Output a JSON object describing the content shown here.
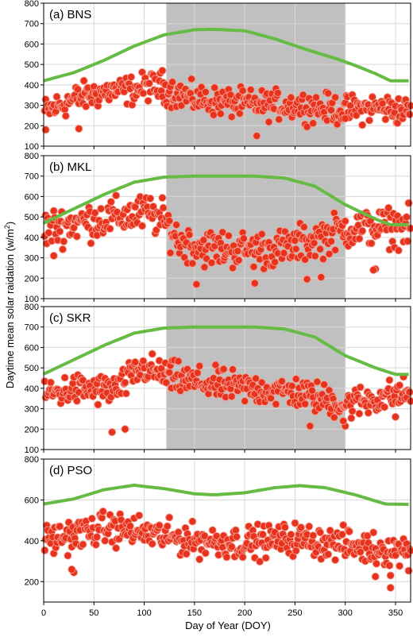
{
  "chart_data": {
    "type": "scatter",
    "xlabel": "Day of Year (DOY)",
    "ylabel": "Daytime mean solar raidation (w/m²)",
    "ylabel_main": "Daytime mean solar raidation (w/m",
    "ylabel_sup": "2",
    "ylabel_close": ")",
    "xlim": [
      0,
      365
    ],
    "xticks": [
      "0",
      "50",
      "100",
      "150",
      "200",
      "250",
      "300",
      "350"
    ],
    "x_tick_values": [
      0,
      50,
      100,
      150,
      200,
      250,
      300,
      350
    ],
    "grid": true,
    "colors": {
      "points_fill": "#e8321e",
      "points_stroke": "#f4a090",
      "curve": "#66bb44",
      "shade": "#c0c0c0",
      "grid": "#d8d8d8"
    },
    "panels": [
      {
        "title": "(a) BNS",
        "ylim": [
          100,
          800
        ],
        "yticks": [
          100,
          200,
          300,
          400,
          500,
          600,
          700,
          800
        ],
        "ytick_labels": [
          "100",
          "200",
          "300",
          "400",
          "500",
          "600",
          "700",
          "800"
        ],
        "shade": [
          122,
          300
        ],
        "curve": {
          "x": [
            0,
            30,
            60,
            90,
            120,
            150,
            170,
            200,
            230,
            260,
            290,
            310,
            330,
            345,
            365
          ],
          "y": [
            420,
            460,
            520,
            590,
            645,
            670,
            672,
            665,
            625,
            575,
            530,
            495,
            455,
            420,
            420
          ]
        },
        "trend": {
          "x": [
            0,
            30,
            60,
            90,
            105,
            120,
            150,
            200,
            250,
            300,
            330,
            365
          ],
          "y": [
            265,
            330,
            365,
            375,
            395,
            380,
            330,
            305,
            300,
            275,
            290,
            270
          ]
        },
        "spread": 50,
        "extra": [
          [
            2,
            180
          ],
          [
            35,
            185
          ],
          [
            212,
            150
          ],
          [
            300,
            235
          ],
          [
            118,
            470
          ]
        ]
      },
      {
        "title": "(b) MKL",
        "ylim": [
          100,
          800
        ],
        "yticks": [
          100,
          200,
          300,
          400,
          500,
          600,
          700,
          800
        ],
        "ytick_labels": [
          "100",
          "200",
          "300",
          "400",
          "500",
          "600",
          "700",
          "800"
        ],
        "shade": [
          122,
          300
        ],
        "curve": {
          "x": [
            0,
            30,
            60,
            90,
            120,
            150,
            180,
            210,
            240,
            270,
            300,
            330,
            345,
            365
          ],
          "y": [
            470,
            540,
            610,
            670,
            695,
            700,
            700,
            700,
            690,
            650,
            560,
            490,
            462,
            462
          ]
        },
        "trend": {
          "x": [
            0,
            30,
            60,
            90,
            105,
            122,
            135,
            160,
            200,
            240,
            270,
            300,
            330,
            365
          ],
          "y": [
            440,
            470,
            490,
            510,
            520,
            470,
            380,
            350,
            340,
            345,
            390,
            440,
            450,
            450
          ]
        },
        "spread": 65,
        "extra": [
          [
            10,
            310
          ],
          [
            330,
            245
          ],
          [
            328,
            240
          ],
          [
            152,
            170
          ],
          [
            210,
            175
          ],
          [
            276,
            205
          ],
          [
            262,
            195
          ]
        ]
      },
      {
        "title": "(c) SKR",
        "ylim": [
          100,
          800
        ],
        "yticks": [
          100,
          200,
          300,
          400,
          500,
          600,
          700,
          800
        ],
        "ytick_labels": [
          "100",
          "200",
          "300",
          "400",
          "500",
          "600",
          "700",
          "800"
        ],
        "shade": [
          122,
          300
        ],
        "curve": {
          "x": [
            0,
            30,
            60,
            90,
            120,
            150,
            180,
            210,
            240,
            270,
            300,
            330,
            350,
            365
          ],
          "y": [
            470,
            540,
            610,
            670,
            695,
            700,
            700,
            700,
            690,
            650,
            560,
            500,
            468,
            468
          ]
        },
        "trend": {
          "x": [
            0,
            30,
            60,
            75,
            90,
            100,
            122,
            150,
            200,
            250,
            300,
            330,
            365
          ],
          "y": [
            370,
            395,
            390,
            400,
            470,
            500,
            460,
            430,
            400,
            380,
            320,
            350,
            380
          ]
        },
        "spread": 55,
        "extra": [
          [
            68,
            185
          ],
          [
            81,
            200
          ],
          [
            265,
            215
          ],
          [
            300,
            215
          ],
          [
            298,
            240
          ],
          [
            350,
            260
          ]
        ]
      },
      {
        "title": "(d) PSO",
        "ylim": [
          100,
          800
        ],
        "yticks": [
          200,
          400,
          600,
          800
        ],
        "ytick_labels": [
          "200",
          "400",
          "600",
          "800"
        ],
        "shade": null,
        "curve": {
          "x": [
            0,
            30,
            60,
            90,
            120,
            150,
            170,
            200,
            230,
            255,
            280,
            310,
            340,
            365
          ],
          "y": [
            580,
            605,
            650,
            672,
            655,
            630,
            625,
            635,
            660,
            670,
            660,
            625,
            580,
            578
          ]
        },
        "trend": {
          "x": [
            0,
            30,
            60,
            90,
            120,
            150,
            200,
            250,
            300,
            330,
            365
          ],
          "y": [
            400,
            430,
            460,
            450,
            420,
            400,
            390,
            410,
            380,
            360,
            350
          ]
        },
        "spread": 55,
        "extra": [
          [
            30,
            245
          ],
          [
            28,
            260
          ],
          [
            345,
            170
          ],
          [
            345,
            230
          ],
          [
            330,
            225
          ]
        ]
      }
    ]
  }
}
